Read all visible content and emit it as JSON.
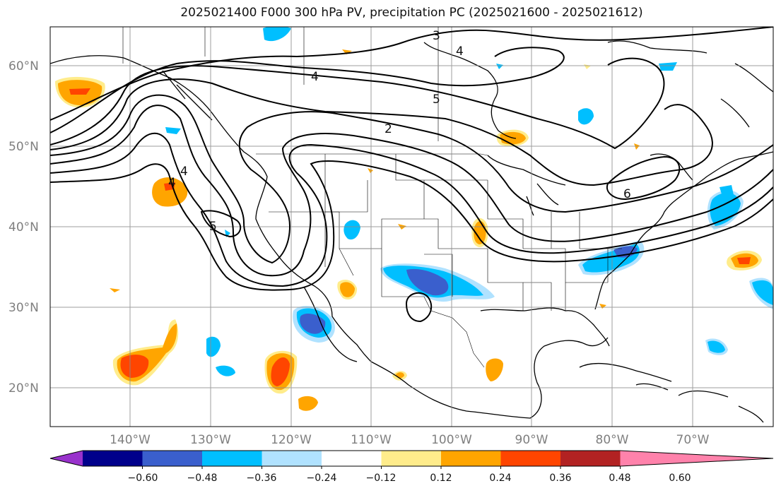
{
  "title": "2025021400 F000 300 hPa PV, precipitation PC (2025021600 - 2025021612)",
  "map": {
    "lat_labels": [
      "60°N",
      "50°N",
      "40°N",
      "30°N",
      "20°N"
    ],
    "lon_labels": [
      "140°W",
      "130°W",
      "120°W",
      "110°W",
      "100°W",
      "90°W",
      "80°W",
      "70°W"
    ],
    "pv_contour_labels": [
      "3",
      "4",
      "4",
      "5",
      "2",
      "4",
      "4",
      "5",
      "6"
    ],
    "gridlines": true
  },
  "colorbar": {
    "ticks": [
      "−0.60",
      "−0.48",
      "−0.36",
      "−0.24",
      "−0.12",
      "0.12",
      "0.24",
      "0.36",
      "0.48",
      "0.60"
    ],
    "colors": [
      "#9932cc",
      "#00008b",
      "#3a5fcd",
      "#00bfff",
      "#b0e2ff",
      "#ffffff",
      "#ffec8b",
      "#ffa500",
      "#ff4500",
      "#b22222",
      "#ff82ab"
    ]
  }
}
